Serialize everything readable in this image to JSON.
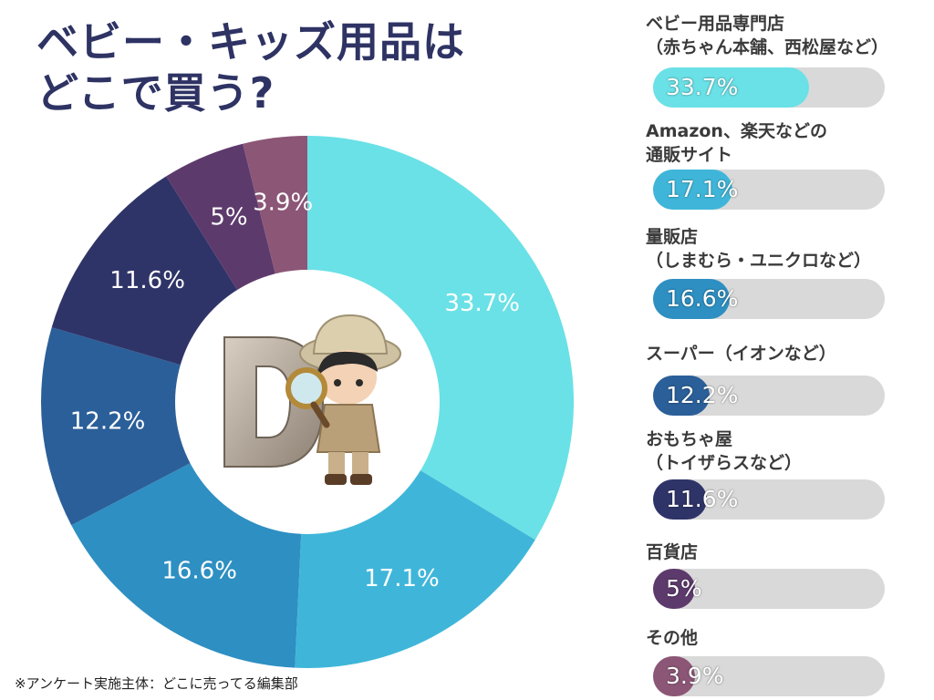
{
  "header": {
    "title_line1": "ベビー・キッズ用品は",
    "title_line2": "どこで買う?"
  },
  "footnote": "※アンケート実施主体：どこに売ってる編集部",
  "chart_data": {
    "type": "pie",
    "donut": true,
    "categories": [
      "ベビー用品専門店（赤ちゃん本舗、西松屋など）",
      "Amazon、楽天などの通販サイト",
      "量販店（しまむら・ユニクロなど）",
      "スーパー（イオンなど）",
      "おもちゃ屋（トイザらスなど）",
      "百貨店",
      "その他"
    ],
    "values": [
      33.7,
      17.1,
      16.6,
      12.2,
      11.6,
      5,
      3.9
    ],
    "value_labels": [
      "33.7%",
      "17.1%",
      "16.6%",
      "12.2%",
      "11.6%",
      "5%",
      "3.9%"
    ],
    "colors": [
      "#6ae1e6",
      "#3fb6d9",
      "#2e8fc2",
      "#2b5f99",
      "#2f3468",
      "#5d3a6c",
      "#8c5676"
    ]
  },
  "legend": [
    {
      "line1": "ベビー用品専門店",
      "line2": "（赤ちゃん本舗、西松屋など）"
    },
    {
      "line1": "Amazon、楽天などの",
      "line2": "通販サイト"
    },
    {
      "line1": "量販店",
      "line2": "（しまむら・ユニクロなど）"
    },
    {
      "line1": "スーパー（イオンなど）",
      "line2": ""
    },
    {
      "line1": "おもちゃ屋",
      "line2": "（トイザらスなど）"
    },
    {
      "line1": "百貨店",
      "line2": ""
    },
    {
      "line1": "その他",
      "line2": ""
    }
  ],
  "mascot_icon": "explorer-character-icon"
}
